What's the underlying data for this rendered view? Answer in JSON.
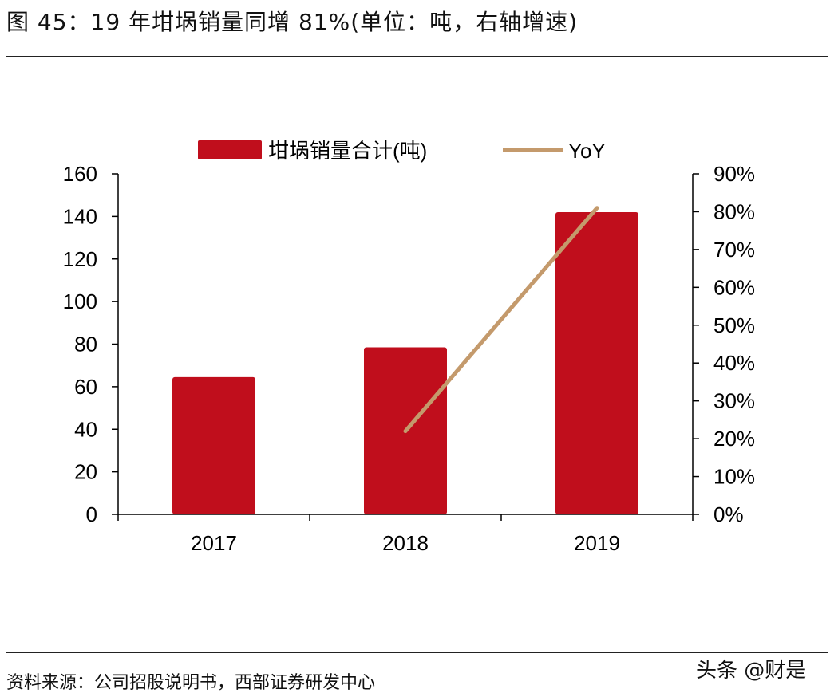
{
  "header": {
    "title": "图 45：19 年坩埚销量同增 81%(单位：吨，右轴增速)"
  },
  "footer": {
    "source": "资料来源：公司招股说明书，西部证券研发中心",
    "watermark": "头条 @财是"
  },
  "colors": {
    "bar": "#c00e1c",
    "line": "#c49a6c",
    "axis": "#000000"
  },
  "chart_data": {
    "type": "bar",
    "categories": [
      "2017",
      "2018",
      "2019"
    ],
    "series": [
      {
        "name": "坩埚销量合计(吨)",
        "type": "bar",
        "axis": "left",
        "values": [
          64.5,
          78.5,
          142
        ]
      },
      {
        "name": "YoY",
        "type": "line",
        "axis": "right",
        "values": [
          null,
          0.22,
          0.81
        ]
      }
    ],
    "ylim": [
      0,
      160
    ],
    "yticks": [
      "0",
      "20",
      "40",
      "60",
      "80",
      "100",
      "120",
      "140",
      "160"
    ],
    "y2lim": [
      0,
      0.9
    ],
    "y2ticks": [
      "0%",
      "10%",
      "20%",
      "30%",
      "40%",
      "50%",
      "60%",
      "70%",
      "80%",
      "90%"
    ],
    "legend": "top",
    "grid": false
  }
}
